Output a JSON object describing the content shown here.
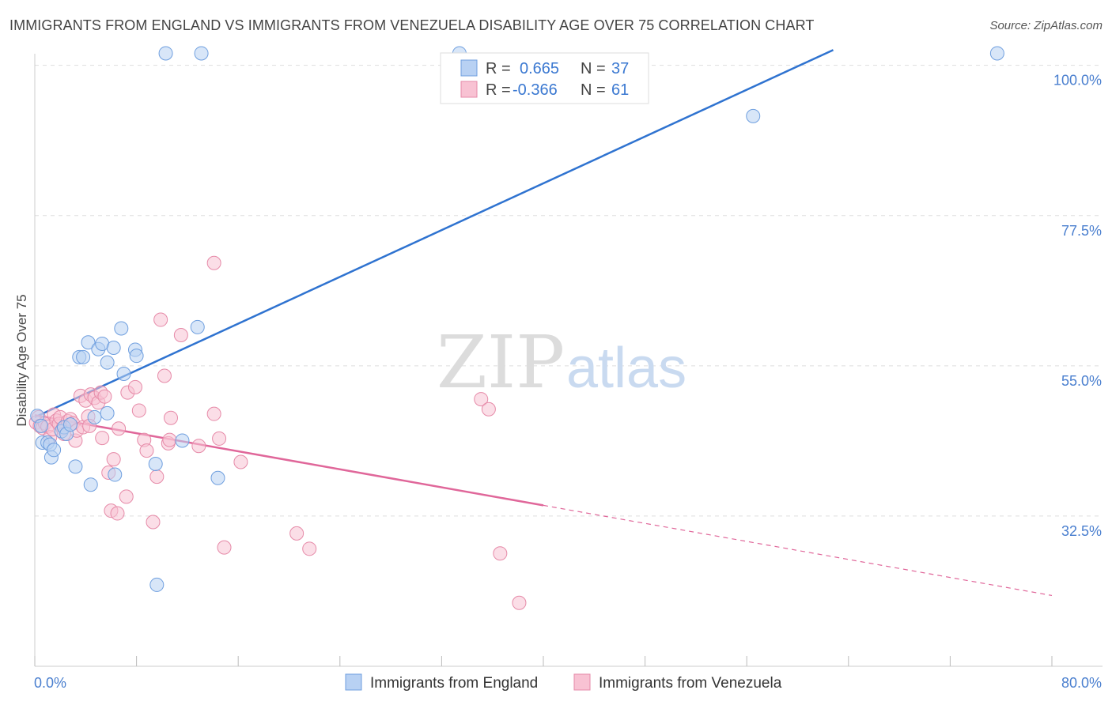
{
  "title": "IMMIGRANTS FROM ENGLAND VS IMMIGRANTS FROM VENEZUELA DISABILITY AGE OVER 75 CORRELATION CHART",
  "source": "Source: ZipAtlas.com",
  "watermark": {
    "zip": "ZIP",
    "atlas": "atlas"
  },
  "legend": {
    "r_label": "R =",
    "n_label": "N =",
    "england": {
      "r": "0.665",
      "n": "37"
    },
    "venezuela": {
      "r": "-0.366",
      "n": "61"
    }
  },
  "bottom_legend": {
    "england": "Immigrants from England",
    "venezuela": "Immigrants from Venezuela"
  },
  "chart_data": {
    "type": "scatter",
    "xlabel": "",
    "ylabel": "Disability Age Over 75",
    "xlim": [
      0,
      80
    ],
    "ylim": [
      10,
      101.5
    ],
    "x_tick_labels": [
      "0.0%",
      "80.0%"
    ],
    "y_ticks": [
      {
        "value": 32.5,
        "label": "32.5%"
      },
      {
        "value": 55.0,
        "label": "55.0%"
      },
      {
        "value": 77.5,
        "label": "77.5%"
      },
      {
        "value": 100.0,
        "label": "100.0%"
      }
    ],
    "grid": true,
    "legend_placement": "top-center",
    "colors": {
      "england_fill": "#b8d1f3",
      "england_stroke": "#6f9fdf",
      "england_line": "#2f73d0",
      "venezuela_fill": "#f8c2d3",
      "venezuela_stroke": "#e68aa8",
      "venezuela_line": "#e0679a"
    },
    "series": [
      {
        "name": "Immigrants from England",
        "r": 0.665,
        "n": 37,
        "trend": {
          "x": [
            0,
            62.8
          ],
          "y": [
            47.3,
            102.3
          ],
          "dashed_to": null
        },
        "points": [
          [
            0.2,
            47.5
          ],
          [
            0.5,
            46.0
          ],
          [
            0.6,
            43.5
          ],
          [
            1.0,
            43.5
          ],
          [
            1.2,
            43.2
          ],
          [
            1.3,
            41.3
          ],
          [
            1.5,
            42.4
          ],
          [
            2.1,
            45.2
          ],
          [
            2.3,
            45.8
          ],
          [
            2.5,
            44.8
          ],
          [
            2.8,
            46.2
          ],
          [
            3.2,
            39.9
          ],
          [
            3.5,
            56.3
          ],
          [
            3.8,
            56.3
          ],
          [
            4.2,
            58.5
          ],
          [
            4.4,
            37.2
          ],
          [
            4.7,
            47.3
          ],
          [
            5.0,
            57.5
          ],
          [
            5.3,
            58.3
          ],
          [
            5.7,
            55.5
          ],
          [
            5.7,
            47.9
          ],
          [
            6.2,
            57.7
          ],
          [
            6.3,
            38.7
          ],
          [
            6.8,
            60.6
          ],
          [
            7.0,
            53.8
          ],
          [
            7.9,
            57.4
          ],
          [
            8.0,
            56.5
          ],
          [
            9.5,
            40.3
          ],
          [
            9.6,
            22.2
          ],
          [
            10.3,
            101.8
          ],
          [
            11.6,
            43.8
          ],
          [
            12.8,
            60.8
          ],
          [
            13.1,
            101.8
          ],
          [
            14.4,
            38.2
          ],
          [
            33.4,
            101.8
          ],
          [
            56.5,
            92.4
          ],
          [
            75.7,
            101.8
          ]
        ]
      },
      {
        "name": "Immigrants from Venezuela",
        "r": -0.366,
        "n": 61,
        "trend": {
          "x": [
            0,
            40.0
          ],
          "y": [
            47.6,
            34.1
          ],
          "dashed_to": [
            80,
            20.6
          ]
        },
        "points": [
          [
            0.1,
            46.5
          ],
          [
            0.3,
            47.3
          ],
          [
            0.4,
            46.0
          ],
          [
            0.6,
            45.7
          ],
          [
            0.8,
            46.4
          ],
          [
            1.0,
            45.9
          ],
          [
            1.2,
            44.3
          ],
          [
            1.4,
            45.5
          ],
          [
            1.5,
            47.7
          ],
          [
            1.7,
            46.8
          ],
          [
            1.9,
            46.3
          ],
          [
            2.0,
            47.3
          ],
          [
            2.2,
            45.6
          ],
          [
            2.3,
            44.8
          ],
          [
            2.6,
            46.7
          ],
          [
            2.8,
            47.0
          ],
          [
            3.0,
            46.4
          ],
          [
            3.2,
            43.8
          ],
          [
            3.3,
            45.3
          ],
          [
            3.6,
            50.5
          ],
          [
            3.8,
            45.8
          ],
          [
            4.0,
            49.8
          ],
          [
            4.2,
            47.4
          ],
          [
            4.3,
            46.0
          ],
          [
            4.4,
            50.7
          ],
          [
            4.7,
            50.2
          ],
          [
            5.0,
            49.5
          ],
          [
            5.2,
            51.0
          ],
          [
            5.3,
            44.2
          ],
          [
            5.5,
            50.4
          ],
          [
            5.8,
            39.0
          ],
          [
            6.0,
            33.3
          ],
          [
            6.2,
            41.0
          ],
          [
            6.5,
            32.9
          ],
          [
            6.6,
            45.6
          ],
          [
            7.2,
            35.4
          ],
          [
            7.3,
            51.0
          ],
          [
            7.9,
            51.8
          ],
          [
            8.2,
            48.3
          ],
          [
            8.6,
            43.9
          ],
          [
            8.8,
            42.3
          ],
          [
            9.3,
            31.6
          ],
          [
            9.6,
            38.4
          ],
          [
            9.9,
            61.9
          ],
          [
            10.2,
            53.5
          ],
          [
            10.5,
            43.4
          ],
          [
            10.6,
            43.9
          ],
          [
            10.7,
            47.2
          ],
          [
            11.5,
            59.6
          ],
          [
            12.9,
            43.0
          ],
          [
            14.1,
            70.4
          ],
          [
            14.1,
            47.8
          ],
          [
            14.5,
            44.1
          ],
          [
            14.9,
            27.8
          ],
          [
            16.2,
            40.6
          ],
          [
            20.6,
            29.9
          ],
          [
            21.6,
            27.6
          ],
          [
            35.1,
            50.0
          ],
          [
            35.7,
            48.5
          ],
          [
            36.6,
            26.9
          ],
          [
            38.1,
            19.5
          ]
        ]
      }
    ]
  }
}
